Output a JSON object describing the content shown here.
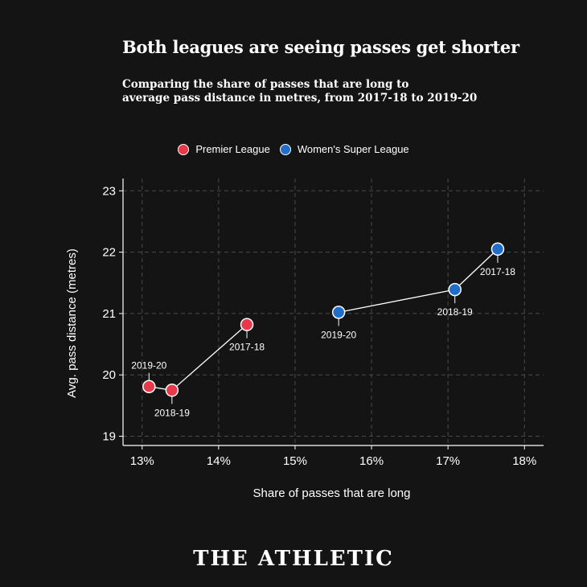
{
  "title": "Both leagues are seeing passes get shorter",
  "subtitle_line1": "Comparing the share of passes that are long to",
  "subtitle_line2": "average pass distance in metres, from 2017-18 to 2019-20",
  "brand": "THE ATHLETIC",
  "colors": {
    "premier": "#e8394a",
    "wsl": "#1f6ec9",
    "background": "#141414"
  },
  "chart_data": {
    "type": "scatter",
    "xlabel": "Share of passes that are long",
    "ylabel": "Avg. pass distance (metres)",
    "xlim": [
      12.75,
      18.25
    ],
    "ylim": [
      18.85,
      23.2
    ],
    "xticks": [
      13,
      14,
      15,
      16,
      17,
      18
    ],
    "xtick_labels": [
      "13%",
      "14%",
      "15%",
      "16%",
      "17%",
      "18%"
    ],
    "yticks": [
      19,
      20,
      21,
      22,
      23
    ],
    "ytick_labels": [
      "19",
      "20",
      "21",
      "22",
      "23"
    ],
    "grid": true,
    "legend_position": "top-center",
    "series": [
      {
        "name": "Premier League",
        "color": "#e8394a",
        "points": [
          {
            "season": "2017-18",
            "x": 14.37,
            "y": 20.82
          },
          {
            "season": "2018-19",
            "x": 13.39,
            "y": 19.75
          },
          {
            "season": "2019-20",
            "x": 13.09,
            "y": 19.81
          }
        ]
      },
      {
        "name": "Women's Super League",
        "color": "#1f6ec9",
        "points": [
          {
            "season": "2017-18",
            "x": 17.65,
            "y": 22.05
          },
          {
            "season": "2018-19",
            "x": 17.09,
            "y": 21.39
          },
          {
            "season": "2019-20",
            "x": 15.57,
            "y": 21.02
          }
        ]
      }
    ]
  }
}
